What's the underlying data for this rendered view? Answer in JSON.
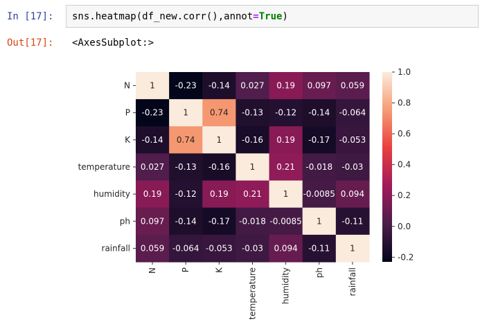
{
  "cell": {
    "input_prompt": "In [17]:",
    "output_prompt": "Out[17]:",
    "code_prefix": "sns.heatmap(df_new.corr(),annot",
    "code_operator": "=",
    "code_keyword": "True",
    "code_suffix": ")",
    "output_text": "<AxesSubplot:>"
  },
  "chart_data": {
    "type": "heatmap",
    "title": "",
    "xlabel": "",
    "ylabel": "",
    "rows": [
      "N",
      "P",
      "K",
      "temperature",
      "humidity",
      "ph",
      "rainfall"
    ],
    "columns": [
      "N",
      "P",
      "K",
      "temperature",
      "humidity",
      "ph",
      "rainfall"
    ],
    "annotations": [
      [
        "1",
        "-0.23",
        "-0.14",
        "0.027",
        "0.19",
        "0.097",
        "0.059"
      ],
      [
        "-0.23",
        "1",
        "0.74",
        "-0.13",
        "-0.12",
        "-0.14",
        "-0.064"
      ],
      [
        "-0.14",
        "0.74",
        "1",
        "-0.16",
        "0.19",
        "-0.17",
        "-0.053"
      ],
      [
        "0.027",
        "-0.13",
        "-0.16",
        "1",
        "0.21",
        "-0.018",
        "-0.03"
      ],
      [
        "0.19",
        "-0.12",
        "0.19",
        "0.21",
        "1",
        "-0.0085",
        "0.094"
      ],
      [
        "0.097",
        "-0.14",
        "-0.17",
        "-0.018",
        "-0.0085",
        "1",
        "-0.11"
      ],
      [
        "0.059",
        "-0.064",
        "-0.053",
        "-0.03",
        "0.094",
        "-0.11",
        "1"
      ]
    ],
    "colorbar": {
      "min": -0.23,
      "max": 1.0,
      "ticks": [
        -0.2,
        0.0,
        0.2,
        0.4,
        0.6,
        0.8,
        1.0
      ],
      "tick_labels": [
        "-0.2",
        "0.0",
        "0.2",
        "0.4",
        "0.6",
        "0.8",
        "1.0"
      ],
      "colormap": "rocket",
      "colors": [
        "#03051a",
        "#4c1d4b",
        "#a11a5b",
        "#e83f3f",
        "#f69c73",
        "#faebdd"
      ]
    }
  }
}
